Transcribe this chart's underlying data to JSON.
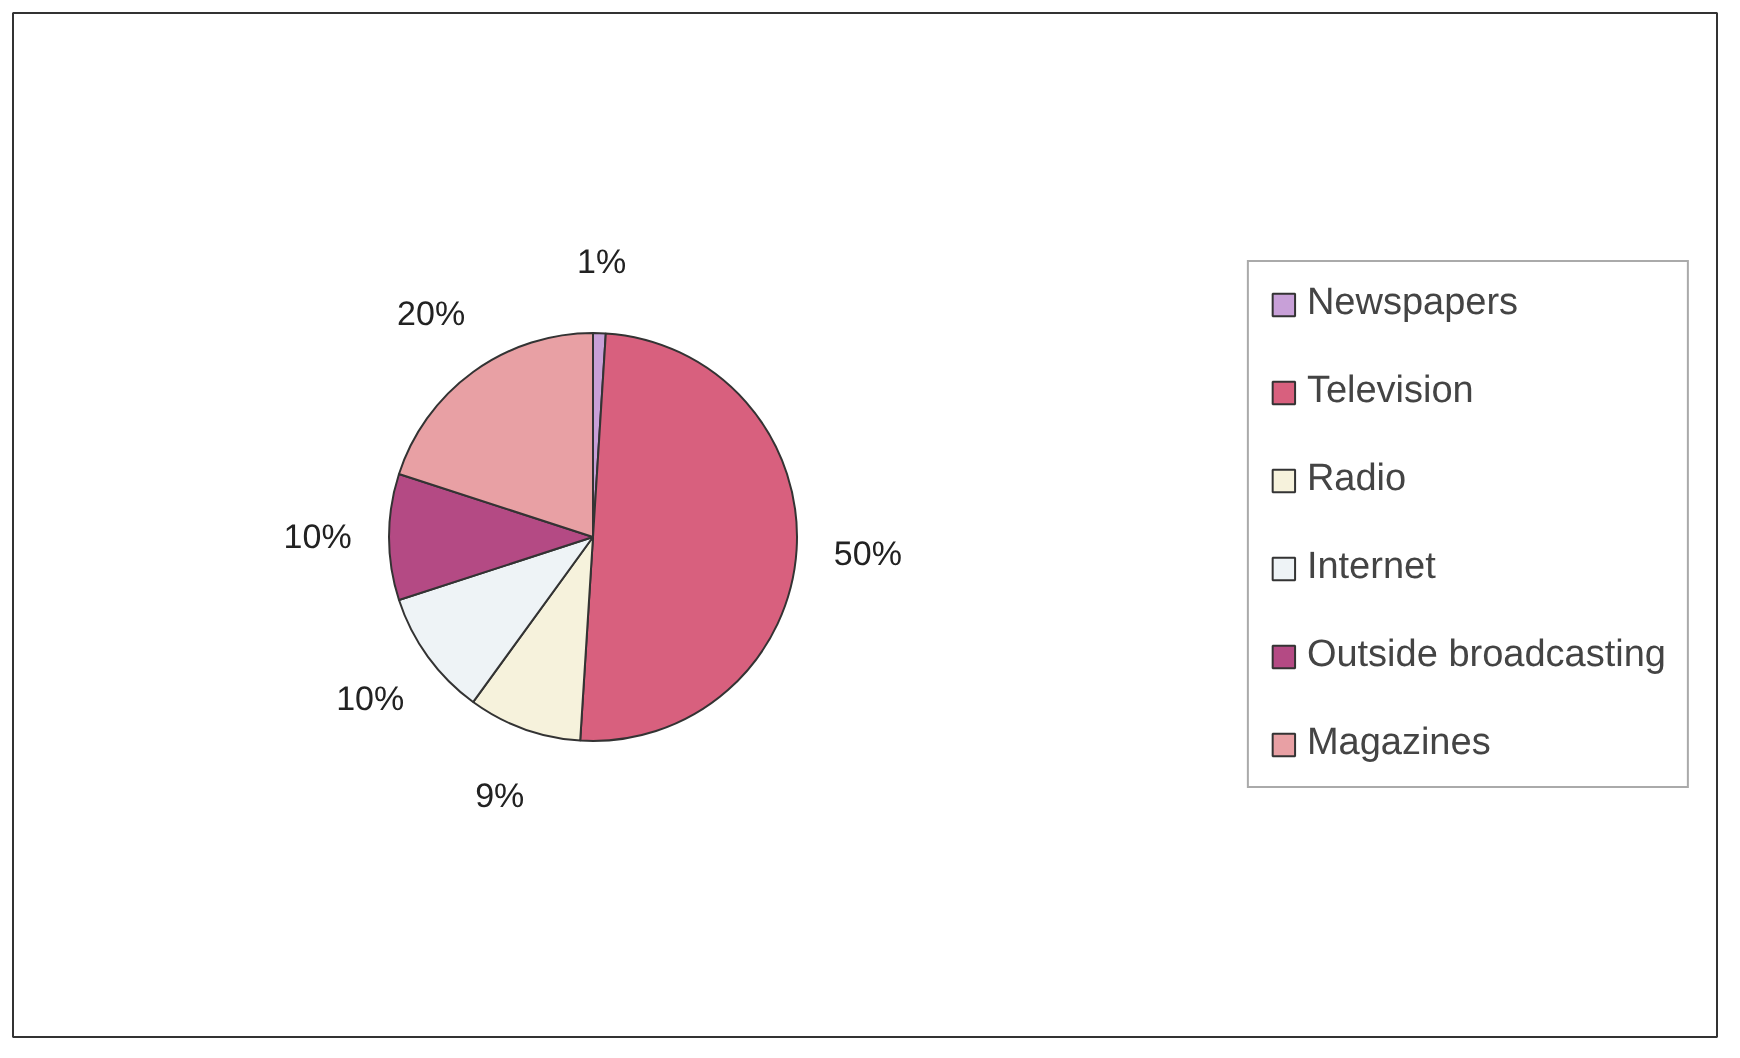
{
  "chart_data": {
    "type": "pie",
    "categories": [
      "Newspapers",
      "Television",
      "Radio",
      "Internet",
      "Outside broadcasting",
      "Magazines"
    ],
    "values": [
      1,
      50,
      9,
      10,
      10,
      20
    ],
    "colors": [
      "#c8a0d8",
      "#d8607e",
      "#f6f2dc",
      "#eef3f6",
      "#b44a84",
      "#e8a0a4"
    ],
    "value_labels": [
      "1%",
      "50%",
      "9%",
      "10%",
      "10%",
      "20%"
    ],
    "legend": "right"
  }
}
